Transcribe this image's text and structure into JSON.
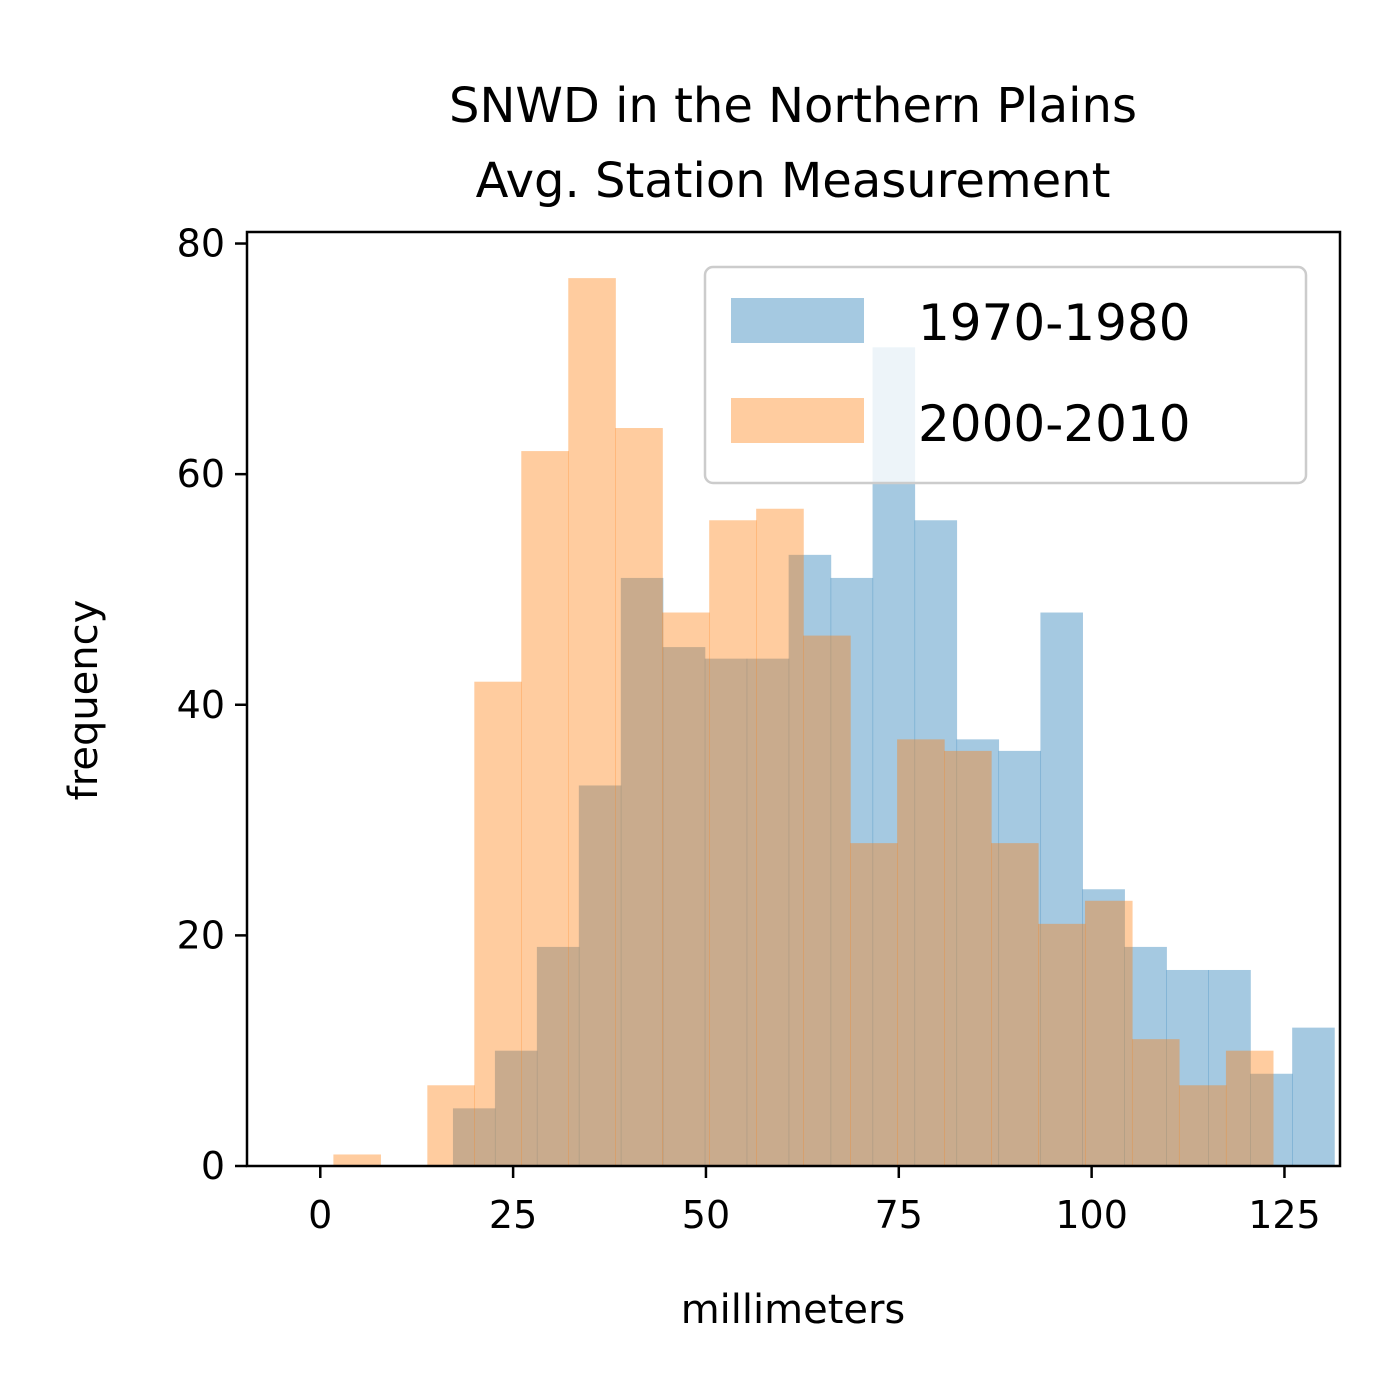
{
  "chart_data": {
    "type": "bar",
    "title_lines": [
      "SNWD in the Northern Plains",
      "Avg. Station Measurement"
    ],
    "xlabel": "millimeters",
    "ylabel": "frequency",
    "xlim": [
      -9.5,
      132.2
    ],
    "ylim": [
      0,
      81
    ],
    "xticks": [
      0,
      25,
      50,
      75,
      100,
      125
    ],
    "yticks": [
      0,
      20,
      40,
      60,
      80
    ],
    "grid": false,
    "legend": "top-right",
    "series": [
      {
        "name": "1970-1980",
        "color": "#1f77b4",
        "alpha": 0.4,
        "bin_start": 17.2,
        "bin_width": 5.44,
        "counts": [
          5,
          10,
          19,
          33,
          51,
          45,
          44,
          44,
          53,
          51,
          71,
          56,
          37,
          36,
          48,
          24,
          19,
          17,
          17,
          8,
          12
        ]
      },
      {
        "name": "2000-2010",
        "color": "#ff7f0e",
        "alpha": 0.4,
        "bin_start": 1.7,
        "bin_width": 6.09,
        "counts": [
          1,
          0,
          7,
          42,
          62,
          77,
          64,
          48,
          56,
          57,
          46,
          28,
          37,
          36,
          28,
          21,
          23,
          11,
          7,
          10
        ]
      }
    ]
  }
}
